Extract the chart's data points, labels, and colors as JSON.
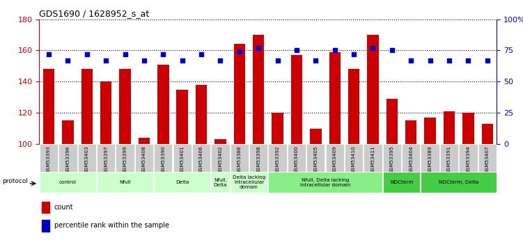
{
  "title": "GDS1690 / 1628952_s_at",
  "samples": [
    "GSM53393",
    "GSM53396",
    "GSM53403",
    "GSM53397",
    "GSM53399",
    "GSM53408",
    "GSM53390",
    "GSM53401",
    "GSM53406",
    "GSM53402",
    "GSM53388",
    "GSM53398",
    "GSM53392",
    "GSM53400",
    "GSM53405",
    "GSM53409",
    "GSM53410",
    "GSM53411",
    "GSM53395",
    "GSM53404",
    "GSM53389",
    "GSM53391",
    "GSM53394",
    "GSM53407"
  ],
  "counts": [
    148,
    115,
    148,
    140,
    148,
    104,
    151,
    135,
    138,
    103,
    164,
    170,
    120,
    157,
    110,
    159,
    148,
    170,
    129,
    115,
    117,
    121,
    120,
    113
  ],
  "percentile": [
    72,
    67,
    72,
    67,
    72,
    67,
    72,
    67,
    72,
    67,
    74,
    77,
    67,
    75,
    67,
    75,
    72,
    77,
    75,
    67,
    67,
    67,
    67,
    67
  ],
  "ylim_left": [
    100,
    180
  ],
  "ylim_right": [
    0,
    100
  ],
  "yticks_left": [
    100,
    120,
    140,
    160,
    180
  ],
  "yticks_right": [
    0,
    25,
    50,
    75,
    100
  ],
  "ytick_labels_right": [
    "0",
    "25",
    "50",
    "75",
    "100%"
  ],
  "bar_color": "#cc0000",
  "dot_color": "#0000cc",
  "tick_bg_color": "#cccccc",
  "group_defs": [
    [
      0,
      2,
      "#ccffcc",
      "control"
    ],
    [
      3,
      5,
      "#ccffcc",
      "Nfull"
    ],
    [
      6,
      8,
      "#ccffcc",
      "Delta"
    ],
    [
      9,
      9,
      "#ccffcc",
      "Nfull,\nDelta"
    ],
    [
      10,
      11,
      "#ccffcc",
      "Delta lacking\nintracellular\ndomain"
    ],
    [
      12,
      17,
      "#88ee88",
      "Nfull, Delta lacking\nintracellular domain"
    ],
    [
      18,
      19,
      "#44cc44",
      "NDCterm"
    ],
    [
      20,
      23,
      "#44cc44",
      "NDCterm, Delta"
    ]
  ]
}
